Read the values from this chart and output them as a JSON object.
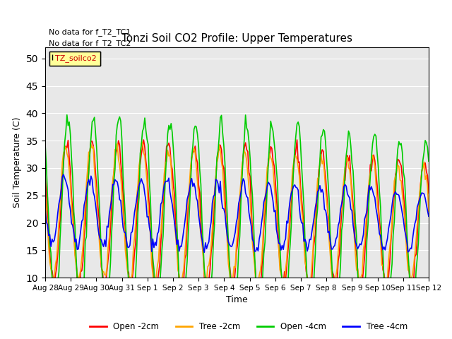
{
  "title": "Tonzi Soil CO2 Profile: Upper Temperatures",
  "ylabel": "Soil Temperature (C)",
  "xlabel": "Time",
  "ylim": [
    10,
    52
  ],
  "yticks": [
    10,
    15,
    20,
    25,
    30,
    35,
    40,
    45,
    50
  ],
  "line_colors": {
    "open_2cm": "#FF0000",
    "tree_2cm": "#FFA500",
    "open_4cm": "#00CC00",
    "tree_4cm": "#0000FF"
  },
  "legend_labels": [
    "Open -2cm",
    "Tree -2cm",
    "Open -4cm",
    "Tree -4cm"
  ],
  "annotations": [
    "No data for f_T2_TC1",
    "No data for f_T2_TC2"
  ],
  "legend_box_label": "TZ_soilco2",
  "n_points": 336,
  "n_days": 15,
  "background_color": "#E8E8E8",
  "xtick_labels": [
    "Aug 28",
    "Aug 29",
    "Aug 30",
    "Aug 31",
    "Sep 1",
    "Sep 2",
    "Sep 3",
    "Sep 4",
    "Sep 5",
    "Sep 6",
    "Sep 7",
    "Sep 8",
    "Sep 9",
    "Sep 10",
    "Sep 11",
    "Sep 12"
  ]
}
